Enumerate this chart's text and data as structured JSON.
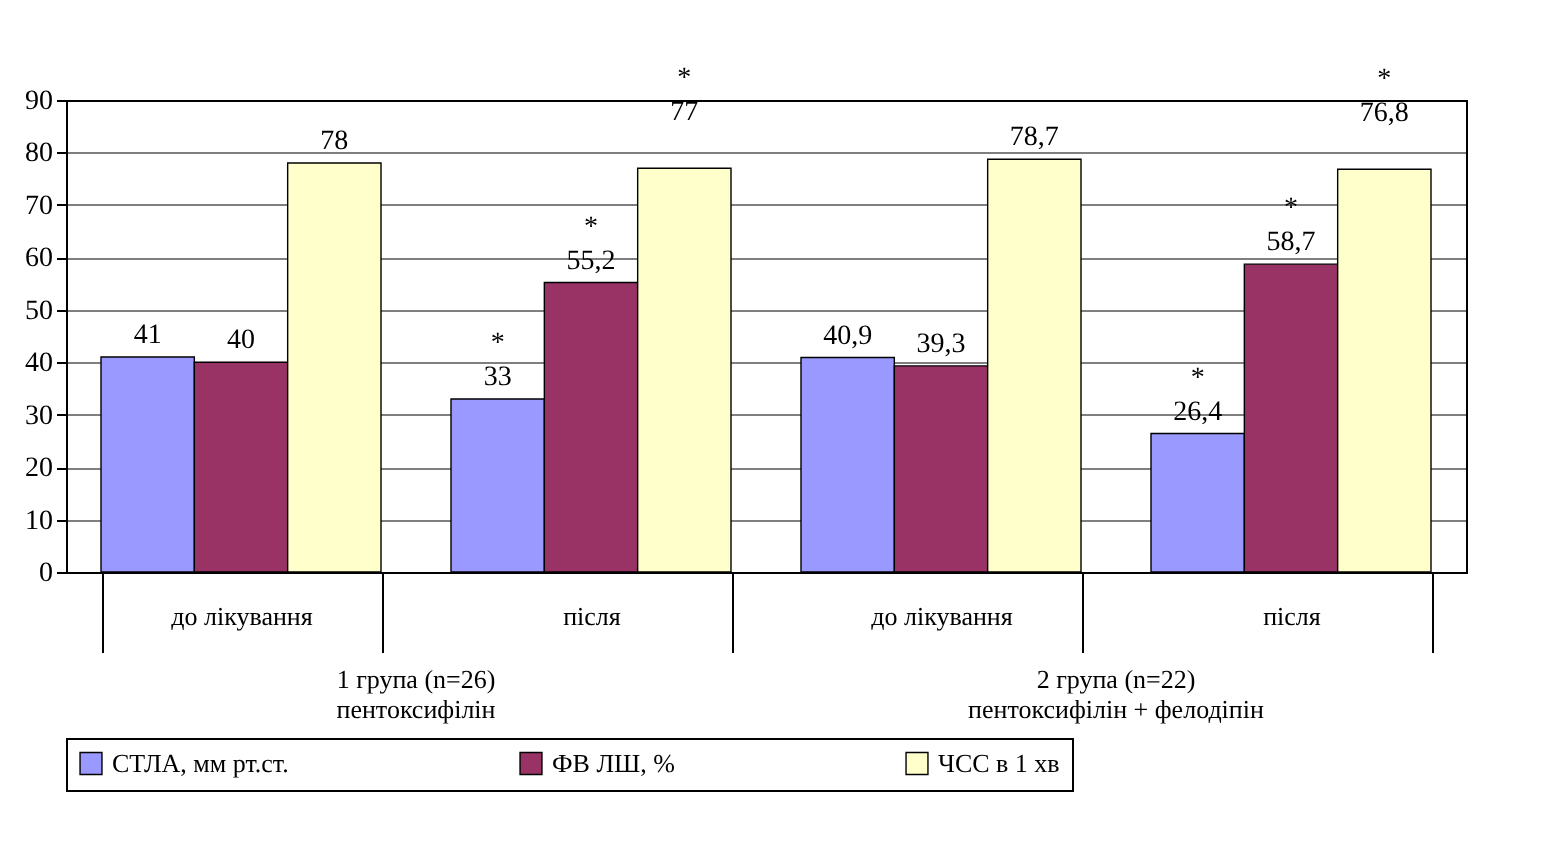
{
  "chart_data": {
    "type": "bar",
    "categories": [
      "до лікування",
      "після",
      "до лікування",
      "після"
    ],
    "series": [
      {
        "name": "СТЛА,  мм рт.ст.",
        "color": "#9999ff",
        "values": [
          41,
          33,
          40.9,
          26.4
        ],
        "value_labels": [
          "41",
          "*\n33",
          "40,9",
          "*\n26,4"
        ]
      },
      {
        "name": "ФВ ЛШ,  %",
        "color": "#993366",
        "values": [
          40,
          55.2,
          39.3,
          58.7
        ],
        "value_labels": [
          "40",
          "*\n55,2",
          "39,3",
          "*\n58,7"
        ]
      },
      {
        "name": "ЧСС в 1 хв",
        "color": "#ffffcc",
        "values": [
          78,
          77,
          78.7,
          76.8
        ],
        "value_labels": [
          "78",
          "*\n\n77",
          "78,7",
          "*\n\n76,8"
        ]
      }
    ],
    "annotations": [
      "1 група  (n=26)\nпентоксифілін",
      "2 група  (n=22)\nпентоксифілін + фелодіпін"
    ],
    "ylim": [
      0,
      90
    ],
    "yticks": [
      0,
      10,
      20,
      30,
      40,
      50,
      60,
      70,
      80,
      90
    ],
    "grid": "y",
    "legend": "bottom"
  }
}
